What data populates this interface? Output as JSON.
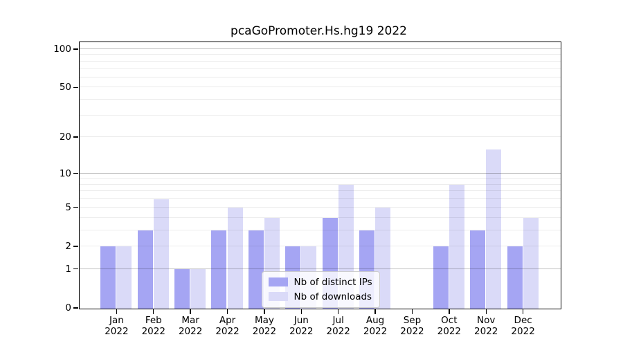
{
  "chart_data": {
    "type": "bar",
    "title": "pcaGoPromoter.Hs.hg19 2022",
    "categories": [
      "Jan",
      "Feb",
      "Mar",
      "Apr",
      "May",
      "Jun",
      "Jul",
      "Aug",
      "Sep",
      "Oct",
      "Nov",
      "Dec"
    ],
    "year_label": "2022",
    "series": [
      {
        "name": "Nb of distinct IPs",
        "color": "#a5a5f3",
        "values": [
          2,
          3,
          1,
          3,
          3,
          2,
          4,
          3,
          0,
          2,
          3,
          2
        ]
      },
      {
        "name": "Nb of downloads",
        "color": "#dadaf8",
        "values": [
          2,
          6,
          1,
          5,
          4,
          2,
          8,
          5,
          0,
          8,
          16,
          4
        ]
      }
    ],
    "yscale": "log1p",
    "ylim": [
      0,
      113
    ],
    "y_ticks": [
      0,
      1,
      2,
      5,
      10,
      20,
      50,
      100
    ],
    "y_major_gridlines": [
      1,
      10,
      100
    ],
    "y_minor_gridlines": [
      2,
      3,
      4,
      5,
      6,
      7,
      8,
      9,
      20,
      30,
      40,
      50,
      60,
      70,
      80,
      90
    ],
    "grid": "horizontal",
    "legend_position": "lower center-right",
    "xlabel": "",
    "ylabel": ""
  }
}
